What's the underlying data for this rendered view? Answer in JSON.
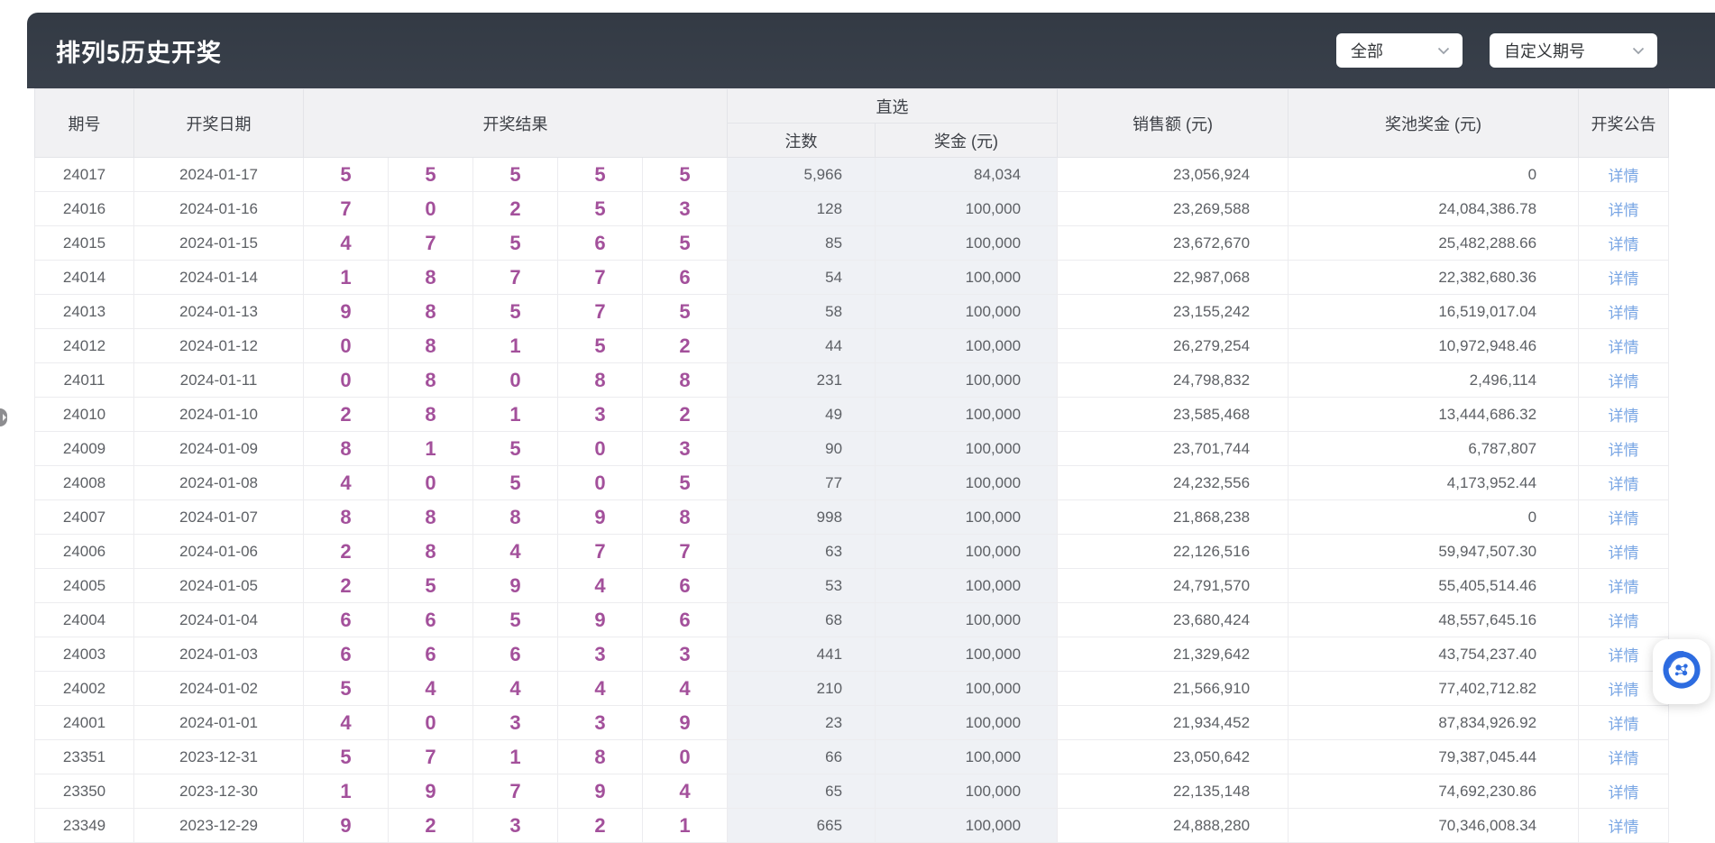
{
  "header": {
    "title": "排列5历史开奖",
    "filters": {
      "scope": {
        "value": "全部"
      },
      "custom_issue": {
        "value": "自定义期号"
      }
    }
  },
  "table": {
    "columns": {
      "issue": "期号",
      "date": "开奖日期",
      "result": "开奖结果",
      "zhixuan_group": "直选",
      "bets": "注数",
      "prize": "奖金 (元)",
      "sales": "销售额 (元)",
      "pool": "奖池奖金 (元)",
      "notice": "开奖公告"
    },
    "detail_label": "详情",
    "rows": [
      {
        "issue": "24017",
        "date": "2024-01-17",
        "digits": [
          "5",
          "5",
          "5",
          "5",
          "5"
        ],
        "bets": "5,966",
        "prize": "84,034",
        "sales": "23,056,924",
        "pool": "0"
      },
      {
        "issue": "24016",
        "date": "2024-01-16",
        "digits": [
          "7",
          "0",
          "2",
          "5",
          "3"
        ],
        "bets": "128",
        "prize": "100,000",
        "sales": "23,269,588",
        "pool": "24,084,386.78"
      },
      {
        "issue": "24015",
        "date": "2024-01-15",
        "digits": [
          "4",
          "7",
          "5",
          "6",
          "5"
        ],
        "bets": "85",
        "prize": "100,000",
        "sales": "23,672,670",
        "pool": "25,482,288.66"
      },
      {
        "issue": "24014",
        "date": "2024-01-14",
        "digits": [
          "1",
          "8",
          "7",
          "7",
          "6"
        ],
        "bets": "54",
        "prize": "100,000",
        "sales": "22,987,068",
        "pool": "22,382,680.36"
      },
      {
        "issue": "24013",
        "date": "2024-01-13",
        "digits": [
          "9",
          "8",
          "5",
          "7",
          "5"
        ],
        "bets": "58",
        "prize": "100,000",
        "sales": "23,155,242",
        "pool": "16,519,017.04"
      },
      {
        "issue": "24012",
        "date": "2024-01-12",
        "digits": [
          "0",
          "8",
          "1",
          "5",
          "2"
        ],
        "bets": "44",
        "prize": "100,000",
        "sales": "26,279,254",
        "pool": "10,972,948.46"
      },
      {
        "issue": "24011",
        "date": "2024-01-11",
        "digits": [
          "0",
          "8",
          "0",
          "8",
          "8"
        ],
        "bets": "231",
        "prize": "100,000",
        "sales": "24,798,832",
        "pool": "2,496,114"
      },
      {
        "issue": "24010",
        "date": "2024-01-10",
        "digits": [
          "2",
          "8",
          "1",
          "3",
          "2"
        ],
        "bets": "49",
        "prize": "100,000",
        "sales": "23,585,468",
        "pool": "13,444,686.32"
      },
      {
        "issue": "24009",
        "date": "2024-01-09",
        "digits": [
          "8",
          "1",
          "5",
          "0",
          "3"
        ],
        "bets": "90",
        "prize": "100,000",
        "sales": "23,701,744",
        "pool": "6,787,807"
      },
      {
        "issue": "24008",
        "date": "2024-01-08",
        "digits": [
          "4",
          "0",
          "5",
          "0",
          "5"
        ],
        "bets": "77",
        "prize": "100,000",
        "sales": "24,232,556",
        "pool": "4,173,952.44"
      },
      {
        "issue": "24007",
        "date": "2024-01-07",
        "digits": [
          "8",
          "8",
          "8",
          "9",
          "8"
        ],
        "bets": "998",
        "prize": "100,000",
        "sales": "21,868,238",
        "pool": "0"
      },
      {
        "issue": "24006",
        "date": "2024-01-06",
        "digits": [
          "2",
          "8",
          "4",
          "7",
          "7"
        ],
        "bets": "63",
        "prize": "100,000",
        "sales": "22,126,516",
        "pool": "59,947,507.30"
      },
      {
        "issue": "24005",
        "date": "2024-01-05",
        "digits": [
          "2",
          "5",
          "9",
          "4",
          "6"
        ],
        "bets": "53",
        "prize": "100,000",
        "sales": "24,791,570",
        "pool": "55,405,514.46"
      },
      {
        "issue": "24004",
        "date": "2024-01-04",
        "digits": [
          "6",
          "6",
          "5",
          "9",
          "6"
        ],
        "bets": "68",
        "prize": "100,000",
        "sales": "23,680,424",
        "pool": "48,557,645.16"
      },
      {
        "issue": "24003",
        "date": "2024-01-03",
        "digits": [
          "6",
          "6",
          "6",
          "3",
          "3"
        ],
        "bets": "441",
        "prize": "100,000",
        "sales": "21,329,642",
        "pool": "43,754,237.40"
      },
      {
        "issue": "24002",
        "date": "2024-01-02",
        "digits": [
          "5",
          "4",
          "4",
          "4",
          "4"
        ],
        "bets": "210",
        "prize": "100,000",
        "sales": "21,566,910",
        "pool": "77,402,712.82"
      },
      {
        "issue": "24001",
        "date": "2024-01-01",
        "digits": [
          "4",
          "0",
          "3",
          "3",
          "9"
        ],
        "bets": "23",
        "prize": "100,000",
        "sales": "21,934,452",
        "pool": "87,834,926.92"
      },
      {
        "issue": "23351",
        "date": "2023-12-31",
        "digits": [
          "5",
          "7",
          "1",
          "8",
          "0"
        ],
        "bets": "66",
        "prize": "100,000",
        "sales": "23,050,642",
        "pool": "79,387,045.44"
      },
      {
        "issue": "23350",
        "date": "2023-12-30",
        "digits": [
          "1",
          "9",
          "7",
          "9",
          "4"
        ],
        "bets": "65",
        "prize": "100,000",
        "sales": "22,135,148",
        "pool": "74,692,230.86"
      },
      {
        "issue": "23349",
        "date": "2023-12-29",
        "digits": [
          "9",
          "2",
          "3",
          "2",
          "1"
        ],
        "bets": "665",
        "prize": "100,000",
        "sales": "24,888,280",
        "pool": "70,346,008.34"
      }
    ]
  },
  "colors": {
    "banner": "#39404b",
    "digit": "#a3509b",
    "link": "#79a6e4",
    "shade": "#eff1f5"
  }
}
